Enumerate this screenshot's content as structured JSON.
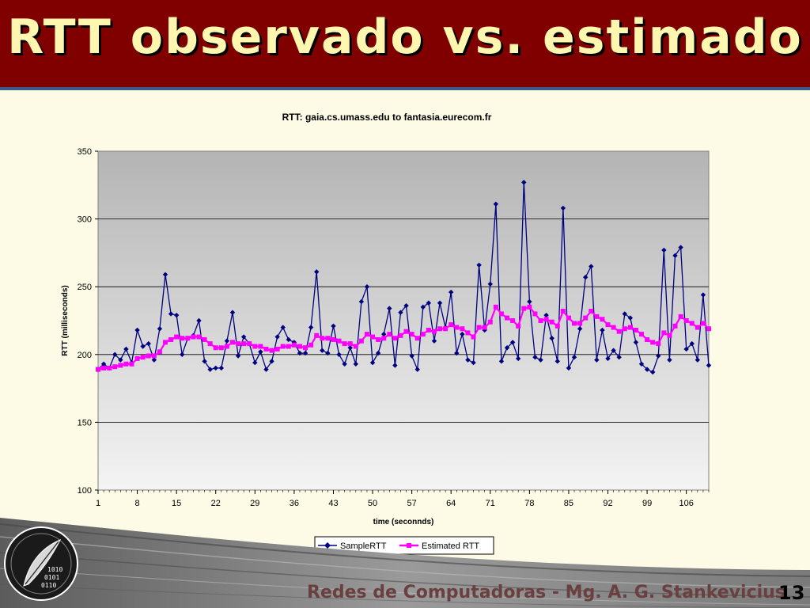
{
  "slide": {
    "title": "RTT observado vs. estimado",
    "footer": "Redes de Computadoras - Mg. A. G. Stankevicius",
    "page_number": "13",
    "colors": {
      "header": "#800000",
      "title": "#fff7b0",
      "background": "#fdfbe6"
    }
  },
  "chart_data": {
    "type": "line",
    "title": "RTT: gaia.cs.umass.edu to fantasia.eurecom.fr",
    "xlabel": "time (seconnds)",
    "ylabel": "RTT (milliseconds)",
    "ylim": [
      100,
      350
    ],
    "yticks": [
      100,
      150,
      200,
      250,
      300,
      350
    ],
    "xticks": [
      1,
      8,
      15,
      22,
      29,
      36,
      43,
      50,
      57,
      64,
      71,
      78,
      85,
      92,
      99,
      106
    ],
    "xlim": [
      1,
      110
    ],
    "grid": true,
    "legend": "bottom",
    "series": [
      {
        "name": "SampleRTT",
        "color": "#000080",
        "marker": "diamond",
        "x": [
          1,
          2,
          3,
          4,
          5,
          6,
          7,
          8,
          9,
          10,
          11,
          12,
          13,
          14,
          15,
          16,
          17,
          18,
          19,
          20,
          21,
          22,
          23,
          24,
          25,
          26,
          27,
          28,
          29,
          30,
          31,
          32,
          33,
          34,
          35,
          36,
          37,
          38,
          39,
          40,
          41,
          42,
          43,
          44,
          45,
          46,
          47,
          48,
          49,
          50,
          51,
          52,
          53,
          54,
          55,
          56,
          57,
          58,
          59,
          60,
          61,
          62,
          63,
          64,
          65,
          66,
          67,
          68,
          69,
          70,
          71,
          72,
          73,
          74,
          75,
          76,
          77,
          78,
          79,
          80,
          81,
          82,
          83,
          84,
          85,
          86,
          87,
          88,
          89,
          90,
          91,
          92,
          93,
          94,
          95,
          96,
          97,
          98,
          99,
          100,
          101,
          102,
          103,
          104,
          105,
          106,
          107,
          108,
          109,
          110
        ],
        "values": [
          189,
          193,
          190,
          200,
          196,
          204,
          194,
          218,
          206,
          208,
          196,
          219,
          259,
          230,
          229,
          200,
          212,
          214,
          225,
          195,
          189,
          190,
          190,
          210,
          231,
          199,
          213,
          208,
          194,
          202,
          189,
          195,
          213,
          220,
          211,
          209,
          201,
          201,
          220,
          261,
          203,
          201,
          221,
          200,
          193,
          205,
          193,
          239,
          250,
          194,
          201,
          215,
          234,
          192,
          231,
          236,
          199,
          189,
          235,
          238,
          210,
          238,
          220,
          246,
          201,
          215,
          196,
          194,
          266,
          218,
          252,
          311,
          195,
          205,
          209,
          197,
          327,
          239,
          198,
          196,
          229,
          212,
          195,
          308,
          190,
          198,
          219,
          257,
          265,
          196,
          218,
          197,
          203,
          198,
          230,
          227,
          209,
          193,
          189,
          187,
          199,
          277,
          196,
          273,
          279,
          204,
          208,
          196,
          244,
          192
        ]
      },
      {
        "name": "Estimated RTT",
        "color": "#ff00ff",
        "marker": "square",
        "x": [
          1,
          2,
          3,
          4,
          5,
          6,
          7,
          8,
          9,
          10,
          11,
          12,
          13,
          14,
          15,
          16,
          17,
          18,
          19,
          20,
          21,
          22,
          23,
          24,
          25,
          26,
          27,
          28,
          29,
          30,
          31,
          32,
          33,
          34,
          35,
          36,
          37,
          38,
          39,
          40,
          41,
          42,
          43,
          44,
          45,
          46,
          47,
          48,
          49,
          50,
          51,
          52,
          53,
          54,
          55,
          56,
          57,
          58,
          59,
          60,
          61,
          62,
          63,
          64,
          65,
          66,
          67,
          68,
          69,
          70,
          71,
          72,
          73,
          74,
          75,
          76,
          77,
          78,
          79,
          80,
          81,
          82,
          83,
          84,
          85,
          86,
          87,
          88,
          89,
          90,
          91,
          92,
          93,
          94,
          95,
          96,
          97,
          98,
          99,
          100,
          101,
          102,
          103,
          104,
          105,
          106,
          107,
          108,
          109,
          110
        ],
        "values": [
          189,
          190,
          190,
          191,
          192,
          193,
          193,
          197,
          198,
          199,
          199,
          202,
          209,
          211,
          213,
          212,
          212,
          213,
          213,
          211,
          208,
          205,
          205,
          206,
          209,
          208,
          208,
          208,
          206,
          206,
          204,
          203,
          204,
          206,
          206,
          207,
          206,
          205,
          207,
          214,
          212,
          212,
          211,
          210,
          208,
          208,
          206,
          210,
          215,
          213,
          211,
          212,
          215,
          212,
          214,
          217,
          215,
          212,
          215,
          218,
          217,
          219,
          219,
          222,
          220,
          219,
          216,
          213,
          220,
          220,
          224,
          235,
          230,
          227,
          225,
          221,
          234,
          235,
          230,
          225,
          226,
          224,
          221,
          232,
          227,
          223,
          223,
          227,
          232,
          228,
          226,
          222,
          220,
          217,
          219,
          220,
          218,
          215,
          211,
          209,
          208,
          216,
          214,
          221,
          228,
          225,
          223,
          220,
          223,
          219
        ]
      }
    ]
  }
}
